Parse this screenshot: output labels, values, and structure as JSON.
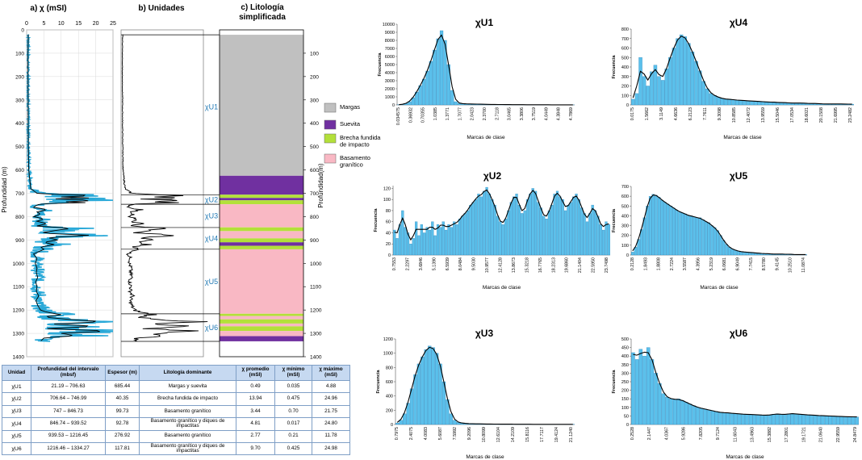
{
  "panels": {
    "a_title": "a) χ (mSI)",
    "a_ticks": [
      "0",
      "5",
      "10",
      "15",
      "20",
      "25"
    ],
    "b_title": "b) Unidades",
    "c_title_1": "c) Litología",
    "c_title_2": "simplificada",
    "y_label_left": "Profundidad (m)",
    "y_label_right": "Profundidad(m)",
    "depth_ticks": [
      "0",
      "100",
      "200",
      "300",
      "400",
      "500",
      "600",
      "700",
      "800",
      "900",
      "1000",
      "1100",
      "1200",
      "1300",
      "1400"
    ],
    "unit_labels": [
      "χU1",
      "χU2",
      "χU3",
      "χU4",
      "χU5",
      "χU6"
    ],
    "legend": [
      {
        "label": "Margas",
        "color": "#c0c0c0"
      },
      {
        "label": "Suevita",
        "color": "#7030a0"
      },
      {
        "label": "Brecha fundida de impacto",
        "color": "#b3e03a"
      },
      {
        "label": "Basamento granítico",
        "color": "#f9b8c4"
      }
    ],
    "series_colors": {
      "raw": "#2aa9d8",
      "smooth": "#000000",
      "unit_label": "#1f78b4"
    }
  },
  "table": {
    "headers": [
      "Unidad",
      "Profundidad del intervalo (mbsf)",
      "Espesor (m)",
      "Litología dominante",
      "χ promedio (mSI)",
      "χ mínimo (mSI)",
      "χ máximo (mSI)"
    ],
    "rows": [
      [
        "χU1",
        "21.19 – 706.63",
        "685.44",
        "Margas y suevita",
        "0.49",
        "0.035",
        "4.88"
      ],
      [
        "χU2",
        "706.64 – 746.99",
        "40.35",
        "Brecha fundida de impacto",
        "13.94",
        "0.475",
        "24.96"
      ],
      [
        "χU3",
        "747 – 846.73",
        "99.73",
        "Basamento granítico",
        "3.44",
        "0.70",
        "21.75"
      ],
      [
        "χU4",
        "846.74 – 939.52",
        "92.78",
        "Basamento granítico y diques de impactitas",
        "4.81",
        "0.017",
        "24.80"
      ],
      [
        "χU5",
        "939.53 – 1216.45",
        "276.92",
        "Basamento granítico",
        "2.77",
        "0.21",
        "11.78"
      ],
      [
        "χU6",
        "1216.46 – 1334.27",
        "117.81",
        "Basamento granítico y diques de impactitas",
        "9.70",
        "0.425",
        "24.98"
      ]
    ]
  },
  "chart_data": [
    {
      "type": "line",
      "title": "a) χ (mSI)",
      "ylabel": "Profundidad (m)",
      "x_range": [
        0,
        25
      ],
      "y_range": [
        0,
        1400
      ],
      "y_inverted": true,
      "series": [
        {
          "name": "raw",
          "color": "#2aa9d8"
        },
        {
          "name": "smooth",
          "color": "#000000"
        }
      ],
      "profile": [
        [
          0,
          0.5
        ],
        [
          100,
          0.4
        ],
        [
          200,
          0.4
        ],
        [
          300,
          0.45
        ],
        [
          400,
          0.45
        ],
        [
          500,
          0.5
        ],
        [
          600,
          0.6
        ],
        [
          680,
          1.2
        ],
        [
          700,
          3
        ],
        [
          705,
          9
        ],
        [
          710,
          22
        ],
        [
          715,
          8
        ],
        [
          720,
          18
        ],
        [
          725,
          6
        ],
        [
          730,
          23
        ],
        [
          735,
          10
        ],
        [
          740,
          17
        ],
        [
          745,
          4
        ],
        [
          750,
          3
        ],
        [
          760,
          2
        ],
        [
          770,
          6
        ],
        [
          780,
          3
        ],
        [
          790,
          4
        ],
        [
          800,
          2
        ],
        [
          810,
          5
        ],
        [
          820,
          3
        ],
        [
          830,
          6
        ],
        [
          840,
          3
        ],
        [
          850,
          13
        ],
        [
          860,
          8
        ],
        [
          870,
          4
        ],
        [
          880,
          18
        ],
        [
          890,
          6
        ],
        [
          900,
          9
        ],
        [
          910,
          5
        ],
        [
          920,
          8
        ],
        [
          930,
          4
        ],
        [
          940,
          5
        ],
        [
          960,
          2
        ],
        [
          980,
          3
        ],
        [
          1000,
          2.5
        ],
        [
          1020,
          3
        ],
        [
          1040,
          2.8
        ],
        [
          1060,
          3.2
        ],
        [
          1080,
          2.6
        ],
        [
          1100,
          3
        ],
        [
          1120,
          2.8
        ],
        [
          1140,
          3.5
        ],
        [
          1160,
          2.7
        ],
        [
          1180,
          3.2
        ],
        [
          1200,
          4
        ],
        [
          1210,
          6
        ],
        [
          1220,
          10
        ],
        [
          1230,
          5
        ],
        [
          1240,
          12
        ],
        [
          1250,
          22
        ],
        [
          1260,
          8
        ],
        [
          1270,
          20
        ],
        [
          1280,
          6
        ],
        [
          1290,
          24
        ],
        [
          1300,
          10
        ],
        [
          1310,
          14
        ],
        [
          1320,
          5
        ],
        [
          1334,
          4
        ]
      ]
    },
    {
      "type": "bar",
      "title": "χU1",
      "xlabel": "Marcas de clase",
      "ylabel": "Frecuencia",
      "yticks": [
        0,
        1000,
        2000,
        3000,
        4000,
        5000,
        6000,
        7000,
        8000,
        9000,
        10000
      ],
      "ylim": [
        0,
        10000
      ],
      "x_tick_labels": [
        "0.034575",
        "0.36932",
        "0.70355",
        "1.0385",
        "1.3771",
        "1.7077",
        "2.0423",
        "2.3700",
        "2.7118",
        "3.0465",
        "3.3806",
        "3.7519",
        "4.0449",
        "4.3848",
        "4.7869"
      ],
      "values": [
        20,
        60,
        180,
        400,
        900,
        1600,
        2400,
        3200,
        4200,
        5400,
        6800,
        8200,
        9200,
        8000,
        5000,
        1800,
        400,
        200,
        150,
        130,
        120,
        110,
        100,
        90,
        80,
        70,
        60,
        60,
        50,
        50,
        40,
        40,
        30,
        30,
        30,
        25,
        25,
        20,
        20,
        20,
        15,
        15,
        15,
        15,
        10,
        10,
        10,
        10,
        10,
        10
      ]
    },
    {
      "type": "bar",
      "title": "χU2",
      "xlabel": "Marcas de clase",
      "ylabel": "Frecuencia",
      "yticks": [
        0,
        20,
        40,
        60,
        80,
        100,
        120
      ],
      "ylim": [
        0,
        125
      ],
      "x_tick_labels": [
        "0.7553",
        "2.2297",
        "3.6846",
        "5.1390",
        "6.5939",
        "8.0484",
        "9.5030",
        "10.9577",
        "12.4128",
        "13.8673",
        "15.3218",
        "16.7765",
        "18.2313",
        "19.6860",
        "21.1404",
        "22.5950",
        "23.7498"
      ],
      "values": [
        45,
        30,
        55,
        80,
        50,
        40,
        20,
        30,
        60,
        35,
        55,
        40,
        50,
        45,
        60,
        35,
        55,
        50,
        60,
        45,
        55,
        50,
        60,
        55,
        65,
        70,
        75,
        80,
        90,
        95,
        100,
        110,
        105,
        115,
        122,
        110,
        100,
        90,
        70,
        60,
        55,
        65,
        80,
        95,
        105,
        110,
        90,
        75,
        80,
        100,
        110,
        120,
        115,
        95,
        85,
        70,
        65,
        80,
        90,
        110,
        115,
        105,
        100,
        80,
        90,
        95,
        105,
        110,
        100,
        85,
        75,
        60,
        75,
        90,
        80,
        70,
        55,
        45,
        60,
        55
      ]
    },
    {
      "type": "bar",
      "title": "χU3",
      "xlabel": "Marcas de clase",
      "ylabel": "Frecuencia",
      "yticks": [
        0,
        200,
        400,
        600,
        800,
        1000,
        1200
      ],
      "ylim": [
        0,
        1200
      ],
      "x_tick_labels": [
        "0.7975",
        "2.4075",
        "4.0083",
        "5.6087",
        "7.5992",
        "9.2096",
        "10.8099",
        "12.6104",
        "14.2109",
        "15.8116",
        "17.7117",
        "19.4124",
        "21.1240"
      ],
      "values": [
        20,
        60,
        150,
        300,
        500,
        700,
        850,
        950,
        1050,
        1100,
        1080,
        1000,
        850,
        600,
        350,
        150,
        60,
        30,
        20,
        15,
        12,
        10,
        10,
        8,
        8,
        7,
        6,
        6,
        5,
        5,
        5,
        4,
        4,
        4,
        3,
        3,
        3,
        3,
        3,
        2,
        2,
        2,
        2,
        2,
        2,
        2,
        2,
        2,
        2,
        2
      ]
    },
    {
      "type": "bar",
      "title": "χU4",
      "xlabel": "Marcas de clase",
      "ylabel": "Frecuencia",
      "yticks": [
        0,
        100,
        200,
        300,
        400,
        500,
        600,
        700,
        800
      ],
      "ylim": [
        0,
        800
      ],
      "x_tick_labels": [
        "0.0175",
        "1.5662",
        "3.1149",
        "4.6636",
        "6.2123",
        "7.7611",
        "9.3098",
        "10.8585",
        "12.4072",
        "13.9559",
        "15.5046",
        "17.0534",
        "18.6021",
        "20.1508",
        "21.6995",
        "23.2482"
      ],
      "values": [
        60,
        120,
        500,
        300,
        200,
        350,
        420,
        300,
        260,
        380,
        500,
        600,
        700,
        740,
        720,
        650,
        560,
        460,
        360,
        250,
        170,
        120,
        100,
        80,
        70,
        60,
        60,
        55,
        50,
        50,
        45,
        45,
        40,
        40,
        35,
        35,
        30,
        30,
        30,
        25,
        25,
        25,
        20,
        20,
        20,
        20,
        20,
        15,
        15,
        15,
        15,
        10,
        10,
        10,
        10,
        10,
        10,
        10,
        8,
        8
      ]
    },
    {
      "type": "bar",
      "title": "χU5",
      "xlabel": "Marcas de clase",
      "ylabel": "Frecuencia",
      "yticks": [
        0,
        100,
        200,
        300,
        400,
        500,
        600,
        700
      ],
      "ylim": [
        0,
        700
      ],
      "x_tick_labels": [
        "0.2128",
        "1.8493",
        "1.8808",
        "2.7224",
        "3.5587",
        "4.3956",
        "5.2319",
        "6.0681",
        "6.9049",
        "7.7415",
        "8.5780",
        "9.4145",
        "10.2510",
        "11.0874"
      ],
      "values": [
        30,
        80,
        160,
        260,
        380,
        500,
        600,
        620,
        610,
        590,
        560,
        540,
        520,
        500,
        480,
        460,
        440,
        430,
        420,
        400,
        400,
        390,
        380,
        380,
        360,
        340,
        330,
        300,
        280,
        250,
        200,
        150,
        110,
        80,
        60,
        50,
        40,
        35,
        30,
        30,
        25,
        25,
        20,
        20,
        15,
        15,
        15,
        10,
        10,
        10,
        10,
        10,
        8,
        8,
        8,
        5,
        5,
        5,
        5,
        5
      ]
    },
    {
      "type": "bar",
      "title": "χU6",
      "xlabel": "Marcas de clase",
      "ylabel": "Frecuencia",
      "yticks": [
        0,
        50,
        100,
        150,
        200,
        250,
        300,
        350,
        400,
        450,
        500
      ],
      "ylim": [
        0,
        500
      ],
      "x_tick_labels": [
        "0.2528",
        "2.1447",
        "4.0367",
        "5.9286",
        "7.8205",
        "9.7124",
        "11.6043",
        "13.4963",
        "15.3882",
        "17.2801",
        "19.1721",
        "21.0640",
        "22.9559",
        "24.8479"
      ],
      "values": [
        420,
        380,
        440,
        400,
        450,
        380,
        300,
        240,
        180,
        160,
        150,
        145,
        150,
        140,
        130,
        120,
        110,
        100,
        95,
        90,
        85,
        80,
        75,
        70,
        70,
        68,
        65,
        65,
        62,
        60,
        60,
        58,
        58,
        56,
        55,
        55,
        54,
        60,
        62,
        60,
        58,
        62,
        64,
        62,
        60,
        58,
        56,
        55,
        54,
        52,
        52,
        50,
        50,
        48,
        48,
        46,
        46,
        45,
        45,
        44
      ]
    }
  ]
}
